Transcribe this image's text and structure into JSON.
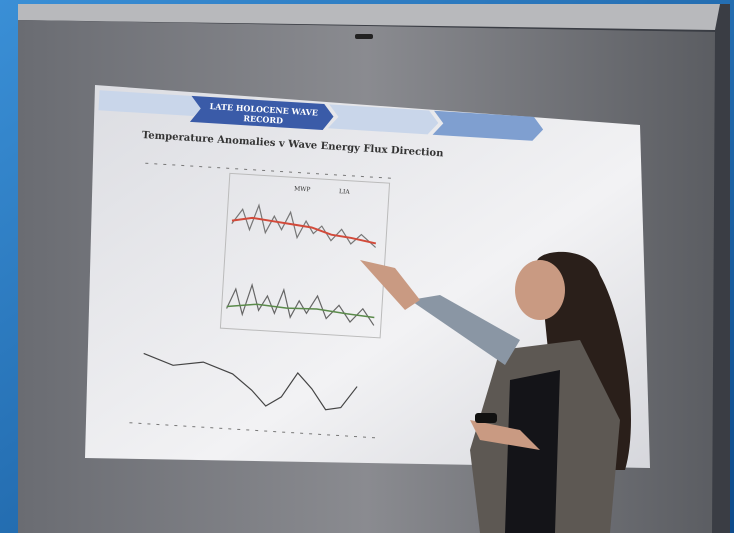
{
  "slide": {
    "nav": [
      "LATE HOLOCENE WAVE",
      "RECORD"
    ],
    "title": "Temperature Anomalies v Wave Energy Flux Direction",
    "annotations": [
      "MWP",
      "LIA"
    ]
  }
}
